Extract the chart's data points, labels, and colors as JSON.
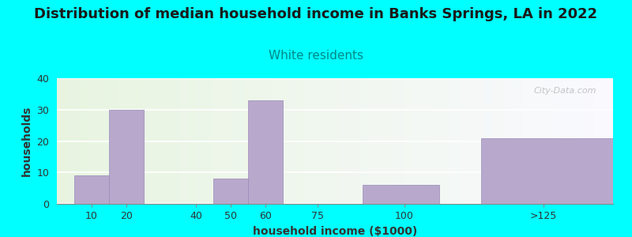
{
  "title": "Distribution of median household income in Banks Springs, LA in 2022",
  "subtitle": "White residents",
  "xlabel": "household income ($1000)",
  "ylabel": "households",
  "background_outer": "#00FFFF",
  "title_fontsize": 13,
  "subtitle_fontsize": 11,
  "subtitle_color": "#008888",
  "bar_color": "#b8a9cc",
  "bar_edge_color": "#9988bb",
  "ylim": [
    0,
    40
  ],
  "yticks": [
    0,
    10,
    20,
    30,
    40
  ],
  "bar_positions": [
    5,
    15,
    35,
    45,
    55,
    68,
    88,
    122
  ],
  "bar_widths": [
    10,
    10,
    10,
    10,
    10,
    12,
    22,
    38
  ],
  "values": [
    9,
    30,
    0,
    8,
    33,
    0,
    6,
    21
  ],
  "xtick_positions": [
    10,
    20,
    40,
    50,
    60,
    75,
    100,
    140
  ],
  "xtick_labels": [
    "10",
    "20",
    "40",
    "50",
    "60",
    "75",
    "100",
    ">125"
  ],
  "xlim": [
    0,
    160
  ]
}
